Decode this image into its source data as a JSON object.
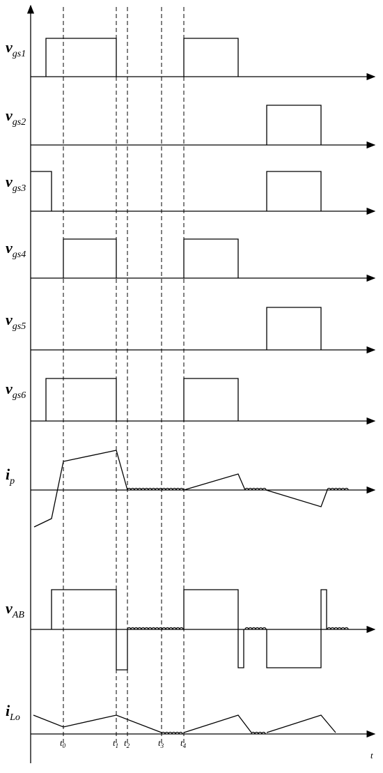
{
  "signals": [
    {
      "symbol": "v",
      "subscript": "gs1"
    },
    {
      "symbol": "v",
      "subscript": "gs2"
    },
    {
      "symbol": "v",
      "subscript": "gs3"
    },
    {
      "symbol": "v",
      "subscript": "gs4"
    },
    {
      "symbol": "v",
      "subscript": "gs5"
    },
    {
      "symbol": "v",
      "subscript": "gs6"
    },
    {
      "symbol": "i",
      "subscript": "p"
    },
    {
      "symbol": "v",
      "subscript": "AB"
    },
    {
      "symbol": "i",
      "subscript": "Lo"
    }
  ],
  "time_marks": [
    {
      "symbol": "t",
      "subscript": "0"
    },
    {
      "symbol": "t",
      "subscript": "1"
    },
    {
      "symbol": "t",
      "subscript": "2"
    },
    {
      "symbol": "t",
      "subscript": "3"
    },
    {
      "symbol": "t",
      "subscript": "4"
    }
  ],
  "axis_label": "t"
}
